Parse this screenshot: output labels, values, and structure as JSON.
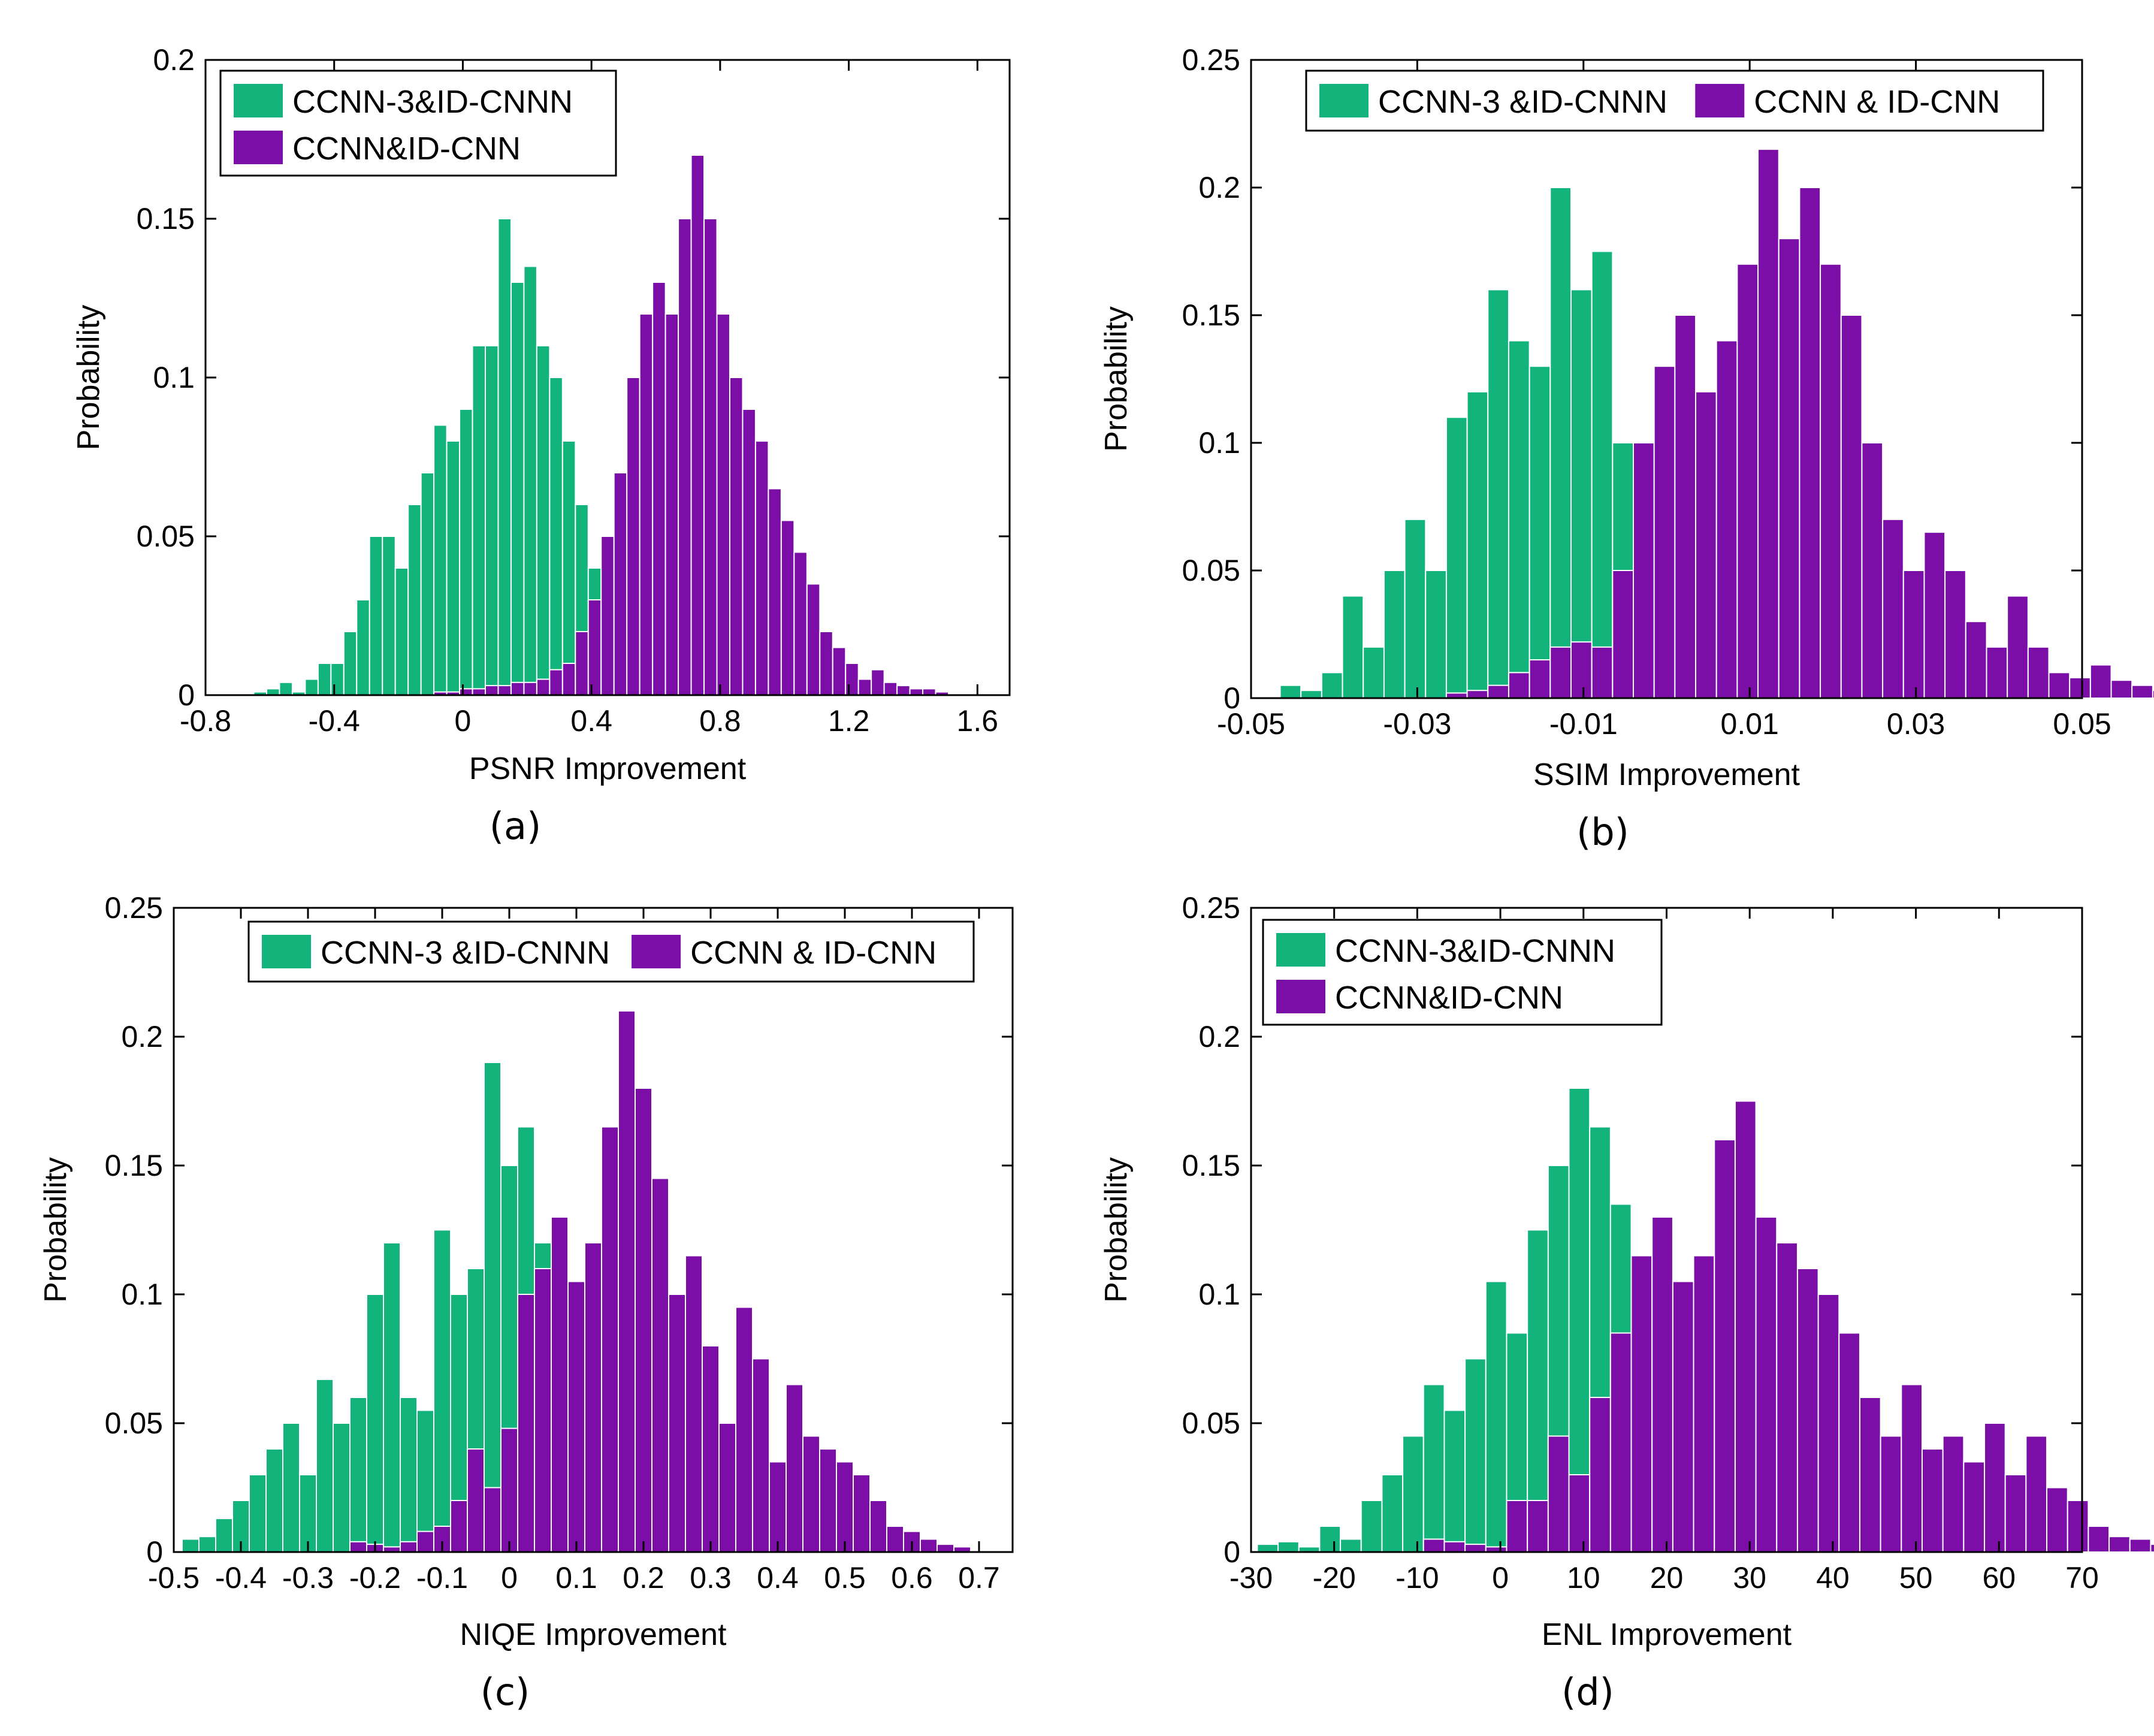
{
  "colors": {
    "green": "#13b47c",
    "purple": "#7a0ea6"
  },
  "chart_data": [
    {
      "type": "histogram",
      "caption": "(a)",
      "xlabel": "PSNR   Improvement",
      "ylabel": "Probability",
      "xlim": [
        -0.8,
        1.7
      ],
      "ylim": [
        0,
        0.2
      ],
      "xticks": [
        -0.8,
        -0.4,
        0,
        0.4,
        0.8,
        1.2,
        1.6
      ],
      "xtick_labels": [
        "-0.8",
        "-0.4",
        "0",
        "0.4",
        "0.8",
        "1.2",
        "1.6"
      ],
      "yticks": [
        0,
        0.05,
        0.1,
        0.15,
        0.2
      ],
      "ytick_labels": [
        "0",
        "0.05",
        "0.1",
        "0.15",
        "0.2"
      ],
      "legend": {
        "layout": "vertical",
        "position": "top-left",
        "entries": [
          "CCNN-3&ID-CNNN",
          "CCNN&ID-CNN"
        ]
      },
      "series": [
        {
          "name": "CCNN-3&ID-CNNN",
          "color": "green",
          "start": -0.65,
          "width": 0.04,
          "values": [
            0.001,
            0.002,
            0.004,
            0.001,
            0.005,
            0.01,
            0.01,
            0.02,
            0.03,
            0.05,
            0.05,
            0.04,
            0.06,
            0.07,
            0.085,
            0.08,
            0.09,
            0.11,
            0.11,
            0.15,
            0.13,
            0.135,
            0.11,
            0.1,
            0.08,
            0.06,
            0.04,
            0.03,
            0.02,
            0.02,
            0.015,
            0.01,
            0.005,
            0.003,
            0.002,
            0.001,
            0.001
          ]
        },
        {
          "name": "CCNN&ID-CNN",
          "color": "purple",
          "start": -0.09,
          "width": 0.04,
          "values": [
            0.001,
            0.001,
            0.002,
            0.002,
            0.003,
            0.003,
            0.004,
            0.004,
            0.005,
            0.008,
            0.01,
            0.02,
            0.03,
            0.05,
            0.07,
            0.1,
            0.12,
            0.13,
            0.12,
            0.15,
            0.17,
            0.15,
            0.12,
            0.1,
            0.09,
            0.08,
            0.065,
            0.055,
            0.045,
            0.035,
            0.02,
            0.015,
            0.01,
            0.005,
            0.008,
            0.004,
            0.003,
            0.002,
            0.002,
            0.001
          ]
        }
      ]
    },
    {
      "type": "histogram",
      "caption": "(b)",
      "xlabel": "SSIM   Improvement",
      "ylabel": "Probability",
      "xlim": [
        -0.05,
        0.05
      ],
      "ylim": [
        0,
        0.25
      ],
      "xticks": [
        -0.05,
        -0.03,
        -0.01,
        0.01,
        0.03,
        0.05
      ],
      "xtick_labels": [
        "-0.05",
        "-0.03",
        "-0.01",
        "0.01",
        "0.03",
        "0.05"
      ],
      "yticks": [
        0,
        0.05,
        0.1,
        0.15,
        0.2,
        0.25
      ],
      "ytick_labels": [
        "0",
        "0.05",
        "0.1",
        "0.15",
        "0.2",
        "0.25"
      ],
      "legend": {
        "layout": "horizontal",
        "position": "top",
        "entries": [
          "CCNN-3 &ID-CNNN",
          "CCNN & ID-CNN"
        ]
      },
      "series": [
        {
          "name": "CCNN-3 &ID-CNNN",
          "color": "green",
          "start": -0.0465,
          "width": 0.0025,
          "values": [
            0.005,
            0.003,
            0.01,
            0.04,
            0.02,
            0.05,
            0.07,
            0.05,
            0.11,
            0.12,
            0.16,
            0.14,
            0.13,
            0.2,
            0.16,
            0.175,
            0.1,
            0.05,
            0.02,
            0.01,
            0.005,
            0.003,
            0.002
          ]
        },
        {
          "name": "CCNN & ID-CNN",
          "color": "purple",
          "start": -0.0265,
          "width": 0.0025,
          "values": [
            0.002,
            0.003,
            0.005,
            0.01,
            0.015,
            0.02,
            0.022,
            0.02,
            0.05,
            0.1,
            0.13,
            0.15,
            0.12,
            0.14,
            0.17,
            0.215,
            0.18,
            0.2,
            0.17,
            0.15,
            0.1,
            0.07,
            0.05,
            0.065,
            0.05,
            0.03,
            0.02,
            0.04,
            0.02,
            0.01,
            0.008,
            0.013,
            0.007,
            0.005,
            0.003,
            0.005
          ]
        }
      ]
    },
    {
      "type": "histogram",
      "caption": "(c)",
      "xlabel": "NIQE   Improvement",
      "ylabel": "Probability",
      "xlim": [
        -0.5,
        0.75
      ],
      "ylim": [
        0,
        0.25
      ],
      "xticks": [
        -0.5,
        -0.4,
        -0.3,
        -0.2,
        -0.1,
        0,
        0.1,
        0.2,
        0.3,
        0.4,
        0.5,
        0.6,
        0.7
      ],
      "xtick_labels": [
        "-0.5",
        "-0.4",
        "-0.3",
        "-0.2",
        "-0.1",
        "0",
        "0.1",
        "0.2",
        "0.3",
        "0.4",
        "0.5",
        "0.6",
        "0.7"
      ],
      "yticks": [
        0,
        0.05,
        0.1,
        0.15,
        0.2,
        0.25
      ],
      "ytick_labels": [
        "0",
        "0.05",
        "0.1",
        "0.15",
        "0.2",
        "0.25"
      ],
      "legend": {
        "layout": "horizontal",
        "position": "top",
        "entries": [
          "CCNN-3 &ID-CNNN",
          "CCNN & ID-CNN"
        ]
      },
      "series": [
        {
          "name": "CCNN-3 &ID-CNNN",
          "color": "green",
          "start": -0.4875,
          "width": 0.025,
          "values": [
            0.005,
            0.006,
            0.013,
            0.02,
            0.03,
            0.04,
            0.05,
            0.03,
            0.067,
            0.05,
            0.06,
            0.1,
            0.12,
            0.06,
            0.055,
            0.125,
            0.1,
            0.11,
            0.19,
            0.15,
            0.165,
            0.12,
            0.08,
            0.05,
            0.02,
            0.01
          ]
        },
        {
          "name": "CCNN & ID-CNN",
          "color": "purple",
          "start": -0.2375,
          "width": 0.025,
          "values": [
            0.004,
            0.003,
            0.002,
            0.004,
            0.008,
            0.01,
            0.02,
            0.04,
            0.025,
            0.048,
            0.1,
            0.11,
            0.13,
            0.105,
            0.12,
            0.165,
            0.21,
            0.18,
            0.145,
            0.1,
            0.115,
            0.08,
            0.05,
            0.095,
            0.075,
            0.035,
            0.065,
            0.045,
            0.04,
            0.035,
            0.03,
            0.02,
            0.01,
            0.008,
            0.005,
            0.003,
            0.002
          ]
        }
      ]
    },
    {
      "type": "histogram",
      "caption": "(d)",
      "xlabel": "ENL   Improvement",
      "ylabel": "Probability",
      "xlim": [
        -30,
        70
      ],
      "ylim": [
        0,
        0.25
      ],
      "xticks": [
        -30,
        -20,
        -10,
        0,
        10,
        20,
        30,
        40,
        50,
        60,
        70
      ],
      "xtick_labels": [
        "-30",
        "-20",
        "-10",
        "0",
        "10",
        "20",
        "30",
        "40",
        "50",
        "60",
        "70"
      ],
      "yticks": [
        0,
        0.05,
        0.1,
        0.15,
        0.2,
        0.25
      ],
      "ytick_labels": [
        "0",
        "0.05",
        "0.1",
        "0.15",
        "0.2",
        "0.25"
      ],
      "legend": {
        "layout": "vertical",
        "position": "top-left",
        "entries": [
          "CCNN-3&ID-CNNN",
          "CCNN&ID-CNN"
        ]
      },
      "series": [
        {
          "name": "CCNN-3&ID-CNNN",
          "color": "green",
          "start": -29.25,
          "width": 2.5,
          "values": [
            0.003,
            0.004,
            0.002,
            0.01,
            0.005,
            0.02,
            0.03,
            0.045,
            0.065,
            0.055,
            0.075,
            0.105,
            0.085,
            0.125,
            0.15,
            0.18,
            0.165,
            0.135,
            0.1,
            0.05,
            0.02,
            0.01
          ]
        },
        {
          "name": "CCNN & ID-CNN",
          "color": "purple",
          "start": -9.25,
          "width": 2.5,
          "values": [
            0.005,
            0.004,
            0.003,
            0.002,
            0.02,
            0.02,
            0.045,
            0.03,
            0.06,
            0.085,
            0.115,
            0.13,
            0.105,
            0.115,
            0.16,
            0.175,
            0.13,
            0.12,
            0.11,
            0.1,
            0.085,
            0.06,
            0.045,
            0.065,
            0.04,
            0.045,
            0.035,
            0.05,
            0.03,
            0.045,
            0.025,
            0.02,
            0.01,
            0.006,
            0.005,
            0.003
          ]
        }
      ]
    }
  ]
}
